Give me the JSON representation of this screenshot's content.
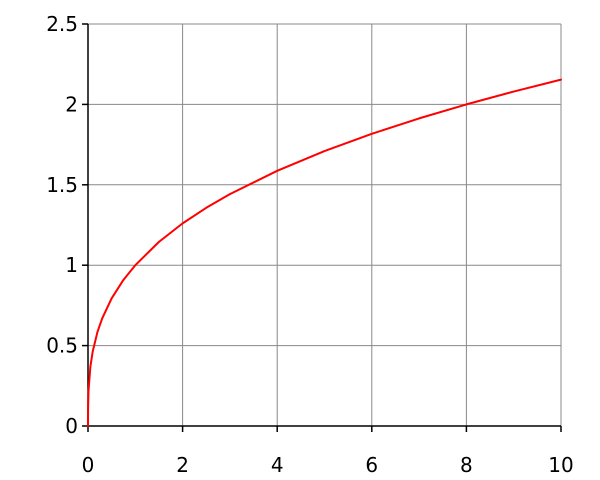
{
  "chart_data": {
    "type": "line",
    "x_ticks": [
      0,
      2,
      4,
      6,
      8,
      10
    ],
    "y_ticks": [
      0,
      0.5,
      1,
      1.5,
      2,
      2.5
    ],
    "x_tick_labels": [
      "0",
      "2",
      "4",
      "6",
      "8",
      "10"
    ],
    "y_tick_labels": [
      "0",
      "0.5",
      "1",
      "1.5",
      "2",
      "2.5"
    ],
    "xlim": [
      0,
      10
    ],
    "ylim": [
      0,
      2.5
    ],
    "grid": true,
    "series": [
      {
        "color": "#ff0000",
        "x": [
          0,
          0.001,
          0.01,
          0.05,
          0.1,
          0.2,
          0.3,
          0.5,
          0.75,
          1,
          1.5,
          2,
          2.5,
          3,
          4,
          5,
          6,
          7,
          8,
          9,
          10
        ],
        "y": [
          0,
          0.1,
          0.215,
          0.368,
          0.464,
          0.585,
          0.669,
          0.794,
          0.909,
          1.0,
          1.145,
          1.26,
          1.357,
          1.442,
          1.587,
          1.71,
          1.817,
          1.913,
          2.0,
          2.08,
          2.154
        ]
      }
    ]
  }
}
